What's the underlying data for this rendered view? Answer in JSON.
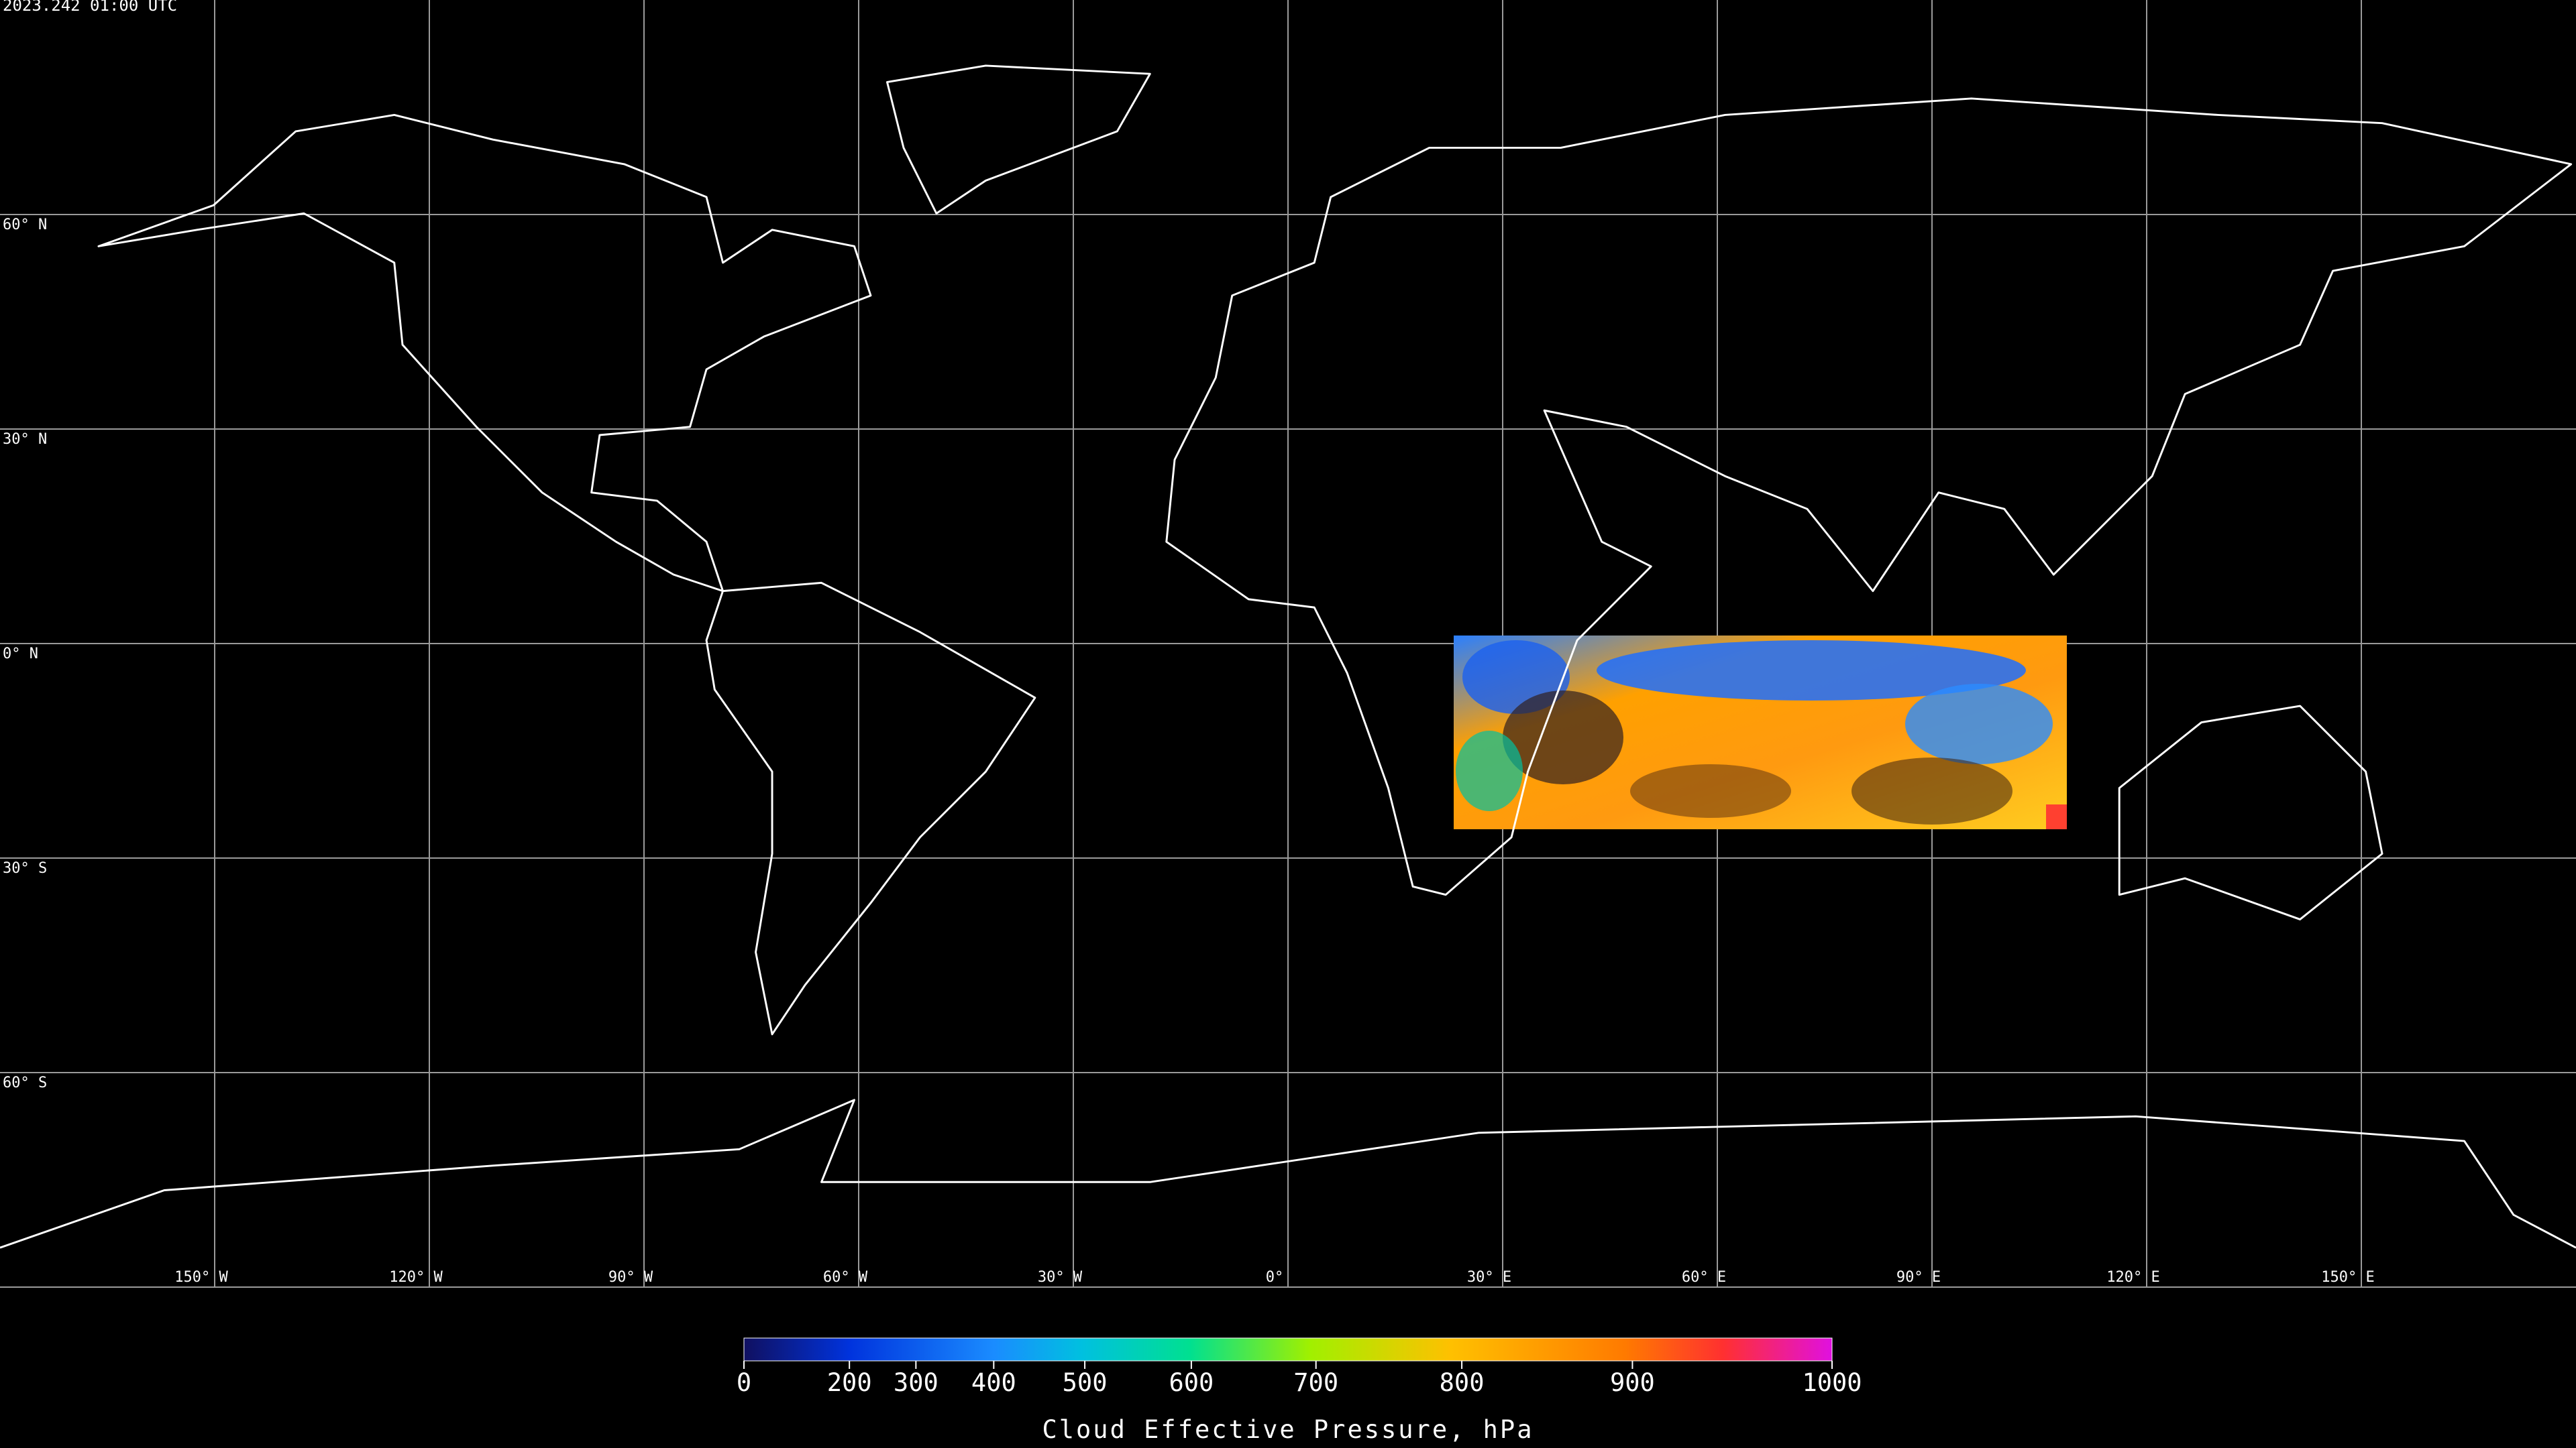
{
  "timestamp": "2023.242 01:00 UTC",
  "map": {
    "lon_ticks": [
      {
        "value": -150,
        "label": "150° W"
      },
      {
        "value": -120,
        "label": "120° W"
      },
      {
        "value": -90,
        "label": "90° W"
      },
      {
        "value": -60,
        "label": "60° W"
      },
      {
        "value": -30,
        "label": "30° W"
      },
      {
        "value": 0,
        "label": "0°"
      },
      {
        "value": 30,
        "label": "30° E"
      },
      {
        "value": 60,
        "label": "60° E"
      },
      {
        "value": 90,
        "label": "90° E"
      },
      {
        "value": 120,
        "label": "120° E"
      },
      {
        "value": 150,
        "label": "150° E"
      }
    ],
    "lat_ticks": [
      {
        "value": 60,
        "label": "60° N"
      },
      {
        "value": 30,
        "label": "30° N"
      },
      {
        "value": 0,
        "label": "0° N"
      },
      {
        "value": -30,
        "label": "30° S"
      },
      {
        "value": -60,
        "label": "60° S"
      }
    ]
  },
  "colorbar": {
    "range": [
      0,
      1000
    ],
    "ticks": [
      0,
      200,
      300,
      400,
      500,
      600,
      700,
      800,
      900,
      1000
    ],
    "label": "Cloud Effective Pressure, hPa"
  }
}
